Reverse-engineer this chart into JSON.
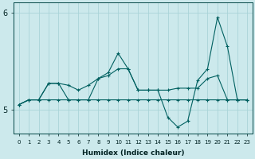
{
  "xlabel": "Humidex (Indice chaleur)",
  "xlim_min": -0.5,
  "xlim_max": 23.5,
  "ylim_min": 4.75,
  "ylim_max": 6.1,
  "yticks": [
    5,
    6
  ],
  "xticks": [
    0,
    1,
    2,
    3,
    4,
    5,
    6,
    7,
    8,
    9,
    10,
    11,
    12,
    13,
    14,
    15,
    16,
    17,
    18,
    19,
    20,
    21,
    22,
    23
  ],
  "bg_color": "#cce9ec",
  "line_color": "#006060",
  "grid_color": "#aad4d8",
  "curves": [
    {
      "x": [
        0,
        1,
        2,
        3,
        4,
        5,
        6,
        7,
        8,
        9,
        10,
        11,
        12,
        13,
        14,
        15,
        16,
        17,
        18,
        19,
        20,
        21,
        22,
        23
      ],
      "y": [
        5.05,
        5.1,
        5.1,
        5.1,
        5.1,
        5.1,
        5.1,
        5.1,
        5.1,
        5.1,
        5.1,
        5.1,
        5.1,
        5.1,
        5.1,
        5.1,
        5.1,
        5.1,
        5.1,
        5.1,
        5.1,
        5.1,
        5.1,
        5.1
      ]
    },
    {
      "x": [
        0,
        1,
        2,
        3,
        4,
        5,
        6,
        7,
        8,
        9,
        10,
        11,
        12,
        13,
        14,
        15,
        16,
        17,
        18,
        19,
        20,
        21,
        22,
        23
      ],
      "y": [
        5.05,
        5.1,
        5.1,
        5.27,
        5.27,
        5.25,
        5.2,
        5.25,
        5.32,
        5.35,
        5.42,
        5.42,
        5.2,
        5.2,
        5.2,
        5.2,
        5.22,
        5.22,
        5.22,
        5.32,
        5.35,
        5.1,
        5.1,
        5.1
      ]
    },
    {
      "x": [
        0,
        1,
        2,
        3,
        4,
        5,
        6,
        7,
        8,
        9,
        10,
        11,
        12,
        13,
        14,
        15,
        16,
        17,
        18,
        19,
        20,
        21,
        22,
        23
      ],
      "y": [
        5.05,
        5.1,
        5.1,
        5.27,
        5.27,
        5.1,
        5.1,
        5.1,
        5.32,
        5.38,
        5.58,
        5.42,
        5.2,
        5.2,
        5.2,
        4.92,
        4.82,
        4.88,
        5.3,
        5.42,
        5.95,
        5.65,
        5.1,
        5.1
      ]
    }
  ]
}
